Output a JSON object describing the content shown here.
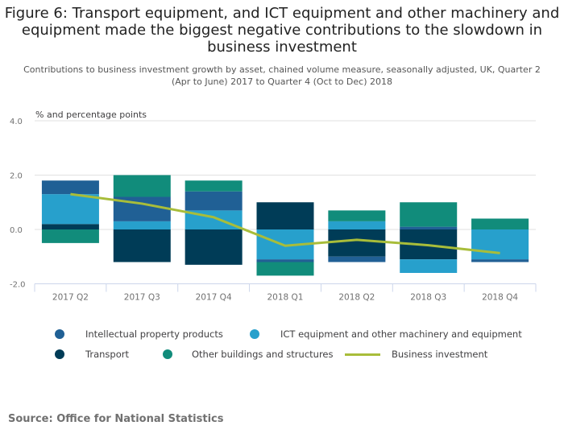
{
  "title": "Figure 6: Transport equipment, and ICT equipment and other machinery and equipment made the biggest negative contributions to the slowdown in business investment",
  "subtitle": "Contributions to business investment growth by asset, chained volume measure, seasonally adjusted, UK, Quarter 2 (Apr to June) 2017 to Quarter 4 (Oct to Dec) 2018",
  "source": "Source: Office for National Statistics",
  "colors": {
    "ipp": "#206095",
    "ict": "#27a0cc",
    "transport": "#003c57",
    "other_buildings": "#118c7b",
    "business_investment": "#a8bd3a"
  },
  "chart_data": {
    "type": "bar",
    "stacked": true,
    "ylabel": "% and percentage points",
    "ylim": [
      -2.0,
      4.0
    ],
    "yticks": [
      "4.0",
      "2.0",
      "0.0",
      "-2.0"
    ],
    "ytick_values": [
      4,
      2,
      0,
      -2
    ],
    "grid": true,
    "legend_position": "bottom",
    "categories": [
      "2017 Q2",
      "2017 Q3",
      "2017 Q4",
      "2018 Q1",
      "2018 Q2",
      "2018 Q3",
      "2018 Q4"
    ],
    "series": [
      {
        "key": "transport",
        "name": "Transport",
        "type": "bar",
        "values": [
          0.2,
          -1.2,
          -1.3,
          1.0,
          -1.0,
          -1.1,
          0.0
        ]
      },
      {
        "key": "ict",
        "name": "ICT equipment and other machinery and equipment",
        "type": "bar",
        "values": [
          1.1,
          0.3,
          0.7,
          -1.1,
          0.3,
          -0.5,
          -1.1
        ]
      },
      {
        "key": "ipp",
        "name": "Intellectual property products",
        "type": "bar",
        "values": [
          0.5,
          0.9,
          0.7,
          -0.1,
          -0.2,
          0.1,
          -0.1
        ]
      },
      {
        "key": "other_buildings",
        "name": "Other buildings and structures",
        "type": "bar",
        "values": [
          -0.5,
          0.8,
          0.4,
          -0.5,
          0.4,
          0.9,
          0.4
        ]
      },
      {
        "key": "business_investment",
        "name": "Business investment",
        "type": "line",
        "values": [
          1.3,
          0.95,
          0.45,
          -0.6,
          -0.38,
          -0.58,
          -0.87
        ]
      }
    ],
    "legend": [
      {
        "key": "ipp",
        "label": "Intellectual property products",
        "marker": "dot"
      },
      {
        "key": "ict",
        "label": "ICT equipment and other machinery and equipment",
        "marker": "dot"
      },
      {
        "key": "transport",
        "label": "Transport",
        "marker": "dot"
      },
      {
        "key": "other_buildings",
        "label": "Other buildings and structures",
        "marker": "dot"
      },
      {
        "key": "business_investment",
        "label": "Business investment",
        "marker": "line"
      }
    ]
  }
}
